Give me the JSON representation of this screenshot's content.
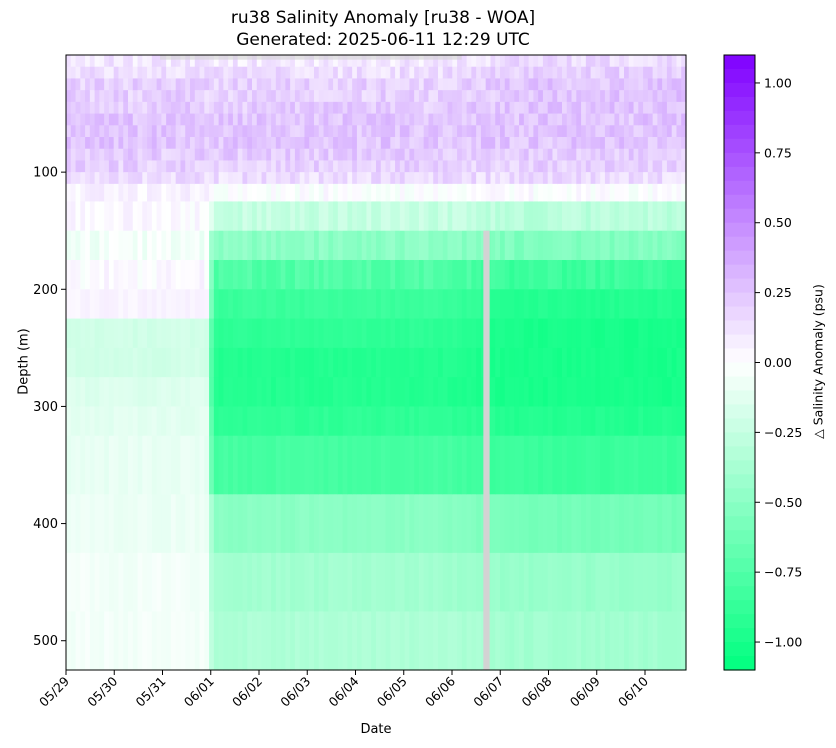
{
  "chart_data": {
    "type": "heatmap",
    "title": "ru38 Salinity Anomaly [ru38 - WOA]",
    "subtitle": "Generated: 2025-06-11 12:29 UTC",
    "xlabel": "Date",
    "ylabel": "Depth (m)",
    "colorbar_label": "△ Salinity Anomaly (psu)",
    "x_ticks": [
      "05/29",
      "05/30",
      "05/31",
      "06/01",
      "06/02",
      "06/03",
      "06/04",
      "06/05",
      "06/06",
      "06/07",
      "06/08",
      "06/09",
      "06/10"
    ],
    "x_range_days": [
      0,
      12.85
    ],
    "y_ticks": [
      100,
      200,
      300,
      400,
      500
    ],
    "y_range_m": [
      0,
      525
    ],
    "y_inverted": true,
    "colorbar_ticks": [
      "1.00",
      "0.75",
      "0.50",
      "0.25",
      "0.00",
      "−0.25",
      "−0.50",
      "−0.75",
      "−1.00"
    ],
    "colorbar_tick_values": [
      1.0,
      0.75,
      0.5,
      0.25,
      0.0,
      -0.25,
      -0.5,
      -0.75,
      -1.0
    ],
    "color_range": [
      -1.1,
      1.1
    ],
    "colormap": {
      "negative": "#00ff7f",
      "zero": "#ffffff",
      "positive": "#7f00ff"
    },
    "missing_color": "#d3d3d3",
    "depth_bins": [
      0,
      10,
      20,
      30,
      40,
      50,
      60,
      70,
      80,
      90,
      100,
      110,
      125,
      150,
      175,
      200,
      225,
      250,
      275,
      300,
      325,
      375,
      425,
      475,
      525
    ],
    "anomaly_by_depth_bin": {
      "early_05-29_to_06-01": [
        0.1,
        0.15,
        0.2,
        0.2,
        0.22,
        0.25,
        0.25,
        0.25,
        0.22,
        0.2,
        0.15,
        0.05,
        0.02,
        -0.05,
        0.02,
        0.05,
        -0.2,
        -0.2,
        -0.15,
        -0.12,
        -0.1,
        -0.08,
        -0.05,
        -0.05
      ],
      "middle_06-01_to_06-08": [
        0.1,
        0.15,
        0.2,
        0.2,
        0.22,
        0.25,
        0.25,
        0.25,
        0.22,
        0.2,
        0.15,
        0.0,
        -0.25,
        -0.5,
        -0.75,
        -0.85,
        -0.9,
        -0.95,
        -0.95,
        -0.9,
        -0.8,
        -0.5,
        -0.4,
        -0.35
      ],
      "late_06-08_to_06-10": [
        0.15,
        0.2,
        0.25,
        0.25,
        0.25,
        0.25,
        0.25,
        0.25,
        0.22,
        0.2,
        0.15,
        0.0,
        -0.3,
        -0.55,
        -0.85,
        -0.95,
        -1.0,
        -1.0,
        -1.0,
        -0.95,
        -0.85,
        -0.6,
        -0.45,
        -0.4
      ]
    },
    "missing_profile_date_days": 8.65,
    "grid": false,
    "legend": "none"
  }
}
